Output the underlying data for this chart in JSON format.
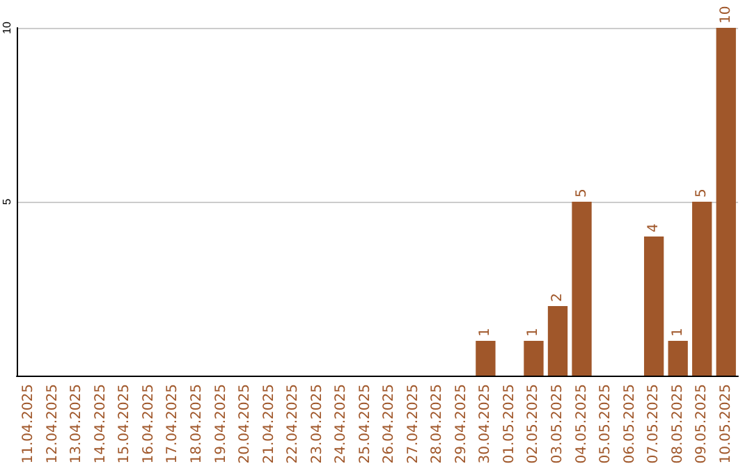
{
  "chart_data": {
    "type": "bar",
    "categories": [
      "11.04.2025",
      "12.04.2025",
      "13.04.2025",
      "14.04.2025",
      "15.04.2025",
      "16.04.2025",
      "17.04.2025",
      "18.04.2025",
      "19.04.2025",
      "20.04.2025",
      "21.04.2025",
      "22.04.2025",
      "23.04.2025",
      "24.04.2025",
      "25.04.2025",
      "26.04.2025",
      "27.04.2025",
      "28.04.2025",
      "29.04.2025",
      "30.04.2025",
      "01.05.2025",
      "02.05.2025",
      "03.05.2025",
      "04.05.2025",
      "05.05.2025",
      "06.05.2025",
      "07.05.2025",
      "08.05.2025",
      "09.05.2025",
      "10.05.2025"
    ],
    "values": [
      0,
      0,
      0,
      0,
      0,
      0,
      0,
      0,
      0,
      0,
      0,
      0,
      0,
      0,
      0,
      0,
      0,
      0,
      0,
      1,
      0,
      1,
      2,
      5,
      0,
      0,
      4,
      1,
      5,
      10
    ],
    "value_labels": [
      null,
      null,
      null,
      null,
      null,
      null,
      null,
      null,
      null,
      null,
      null,
      null,
      null,
      null,
      null,
      null,
      null,
      null,
      null,
      "1",
      null,
      "1",
      "2",
      "5",
      null,
      null,
      "4",
      "1",
      "5",
      "10"
    ],
    "color": "#a0572a",
    "ylim": [
      0,
      10
    ],
    "yticks": [
      5,
      10
    ],
    "grid": "y"
  }
}
